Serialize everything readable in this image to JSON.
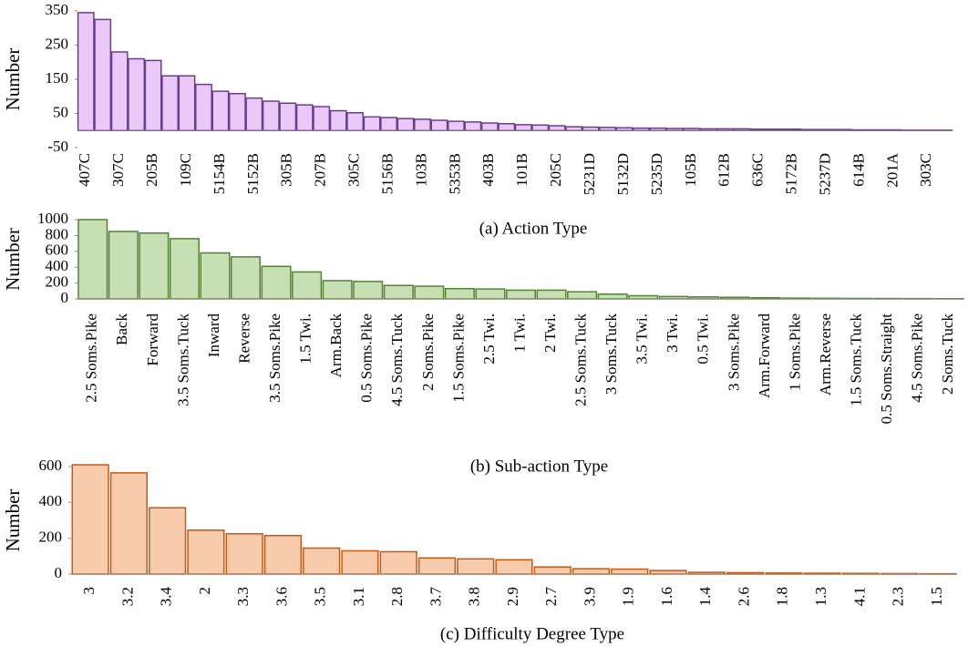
{
  "chart_data": [
    {
      "type": "bar",
      "title": "(a) Action Type",
      "ylabel": "Number",
      "categories": [
        "407C",
        null,
        "307C",
        null,
        "205B",
        null,
        "109C",
        null,
        "5154B",
        null,
        "5152B",
        null,
        "305B",
        null,
        "207B",
        null,
        "305C",
        null,
        "5156B",
        null,
        "103B",
        null,
        "5353B",
        null,
        "403B",
        null,
        "101B",
        null,
        "205C",
        null,
        "5231D",
        null,
        "5132D",
        null,
        "5235D",
        null,
        "105B",
        null,
        "612B",
        null,
        "636C",
        null,
        "5172B",
        null,
        "5237D",
        null,
        "614B",
        null,
        "201A",
        null,
        "303C",
        null
      ],
      "values": [
        345,
        325,
        230,
        210,
        205,
        160,
        160,
        135,
        115,
        108,
        95,
        86,
        80,
        75,
        70,
        58,
        52,
        40,
        38,
        35,
        33,
        30,
        27,
        25,
        22,
        20,
        17,
        16,
        14,
        11,
        10,
        9,
        8,
        7,
        7,
        6,
        6,
        5,
        5,
        5,
        4,
        4,
        4,
        3,
        3,
        3,
        2,
        2,
        2,
        1,
        1,
        1
      ],
      "color": "#eac8f8",
      "edgecolor": "#6a3d8c",
      "ylim": [
        -50,
        350
      ],
      "yticks": [
        -50,
        50,
        150,
        250,
        350
      ]
    },
    {
      "type": "bar",
      "title": "(b) Sub-action Type",
      "ylabel": "Number",
      "categories": [
        "2.5 Soms.Pike",
        "Back",
        "Forward",
        "3.5 Soms.Tuck",
        "Inward",
        "Reverse",
        "3.5 Soms.Pike",
        "1.5 Twi.",
        "Arm.Back",
        "0.5 Soms.Pike",
        "4.5 Soms.Tuck",
        "2 Soms.Pike",
        "1.5 Soms.Pike",
        "2.5 Twi.",
        "1 Twi.",
        "2 Twi.",
        "2.5 Soms.Tuck",
        "3 Soms.Tuck",
        "3.5 Twi.",
        "3 Twi.",
        "0.5 Twi.",
        "3 Soms.Pike",
        "Arm.Forward",
        "1 Soms.Pike",
        "Arm.Reverse",
        "1.5 Soms.Tuck",
        "0.5 Soms.Straight",
        "4.5 Soms.Pike",
        "2 Soms.Tuck"
      ],
      "values": [
        1000,
        850,
        830,
        760,
        580,
        530,
        410,
        340,
        230,
        220,
        170,
        160,
        130,
        125,
        110,
        110,
        90,
        60,
        40,
        30,
        25,
        20,
        15,
        10,
        8,
        6,
        5,
        4,
        3
      ],
      "color": "#c6e0b4",
      "edgecolor": "#548235",
      "ylim": [
        0,
        1000
      ],
      "yticks": [
        0,
        200,
        400,
        600,
        800,
        1000
      ]
    },
    {
      "type": "bar",
      "title": "(c) Difficulty Degree Type",
      "ylabel": "Number",
      "categories": [
        "3",
        "3.2",
        "3.4",
        "2",
        "3.3",
        "3.6",
        "3.5",
        "3.1",
        "2.8",
        "3.7",
        "3.8",
        "2.9",
        "2.7",
        "3.9",
        "1.9",
        "1.6",
        "1.4",
        "2.6",
        "1.8",
        "1.3",
        "4.1",
        "2.3",
        "1.5"
      ],
      "values": [
        610,
        565,
        370,
        245,
        225,
        215,
        145,
        130,
        125,
        90,
        85,
        80,
        40,
        30,
        28,
        20,
        10,
        8,
        6,
        5,
        4,
        3,
        2
      ],
      "color": "#f8cbad",
      "edgecolor": "#c55a11",
      "ylim": [
        0,
        600
      ],
      "yticks": [
        0,
        200,
        400,
        600
      ]
    }
  ]
}
